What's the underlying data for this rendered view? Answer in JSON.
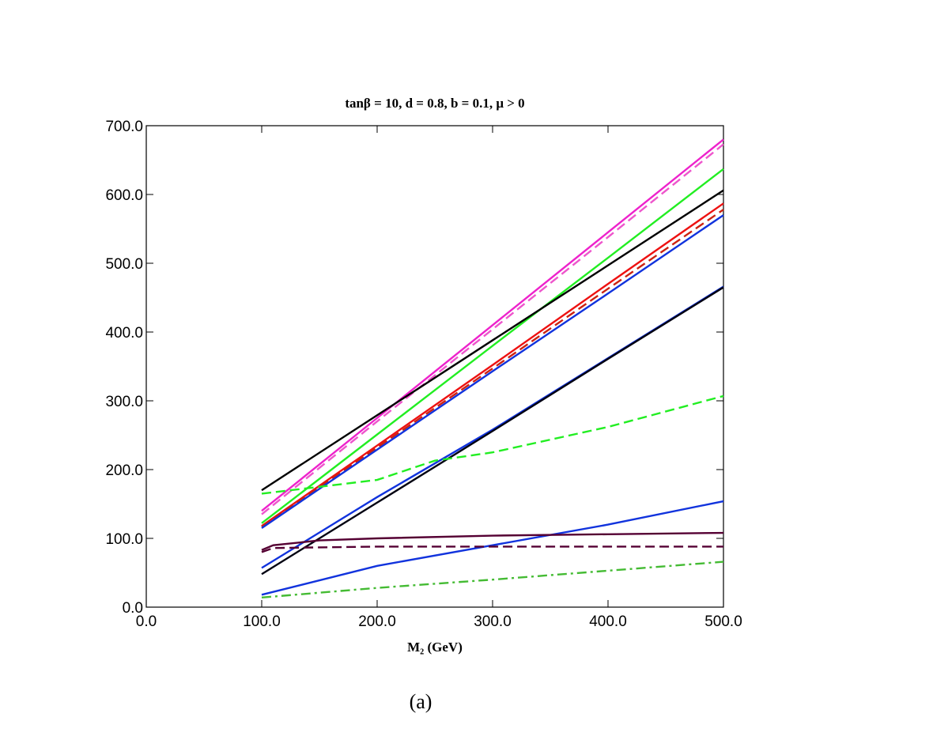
{
  "chart_data": {
    "type": "line",
    "title": "tanβ = 10, d = 0.8, b = 0.1, μ > 0",
    "xlabel": "M₂ (GeV)",
    "caption": "(a)",
    "xlim": [
      0,
      500
    ],
    "ylim": [
      0,
      700
    ],
    "xticks": [
      {
        "value": 0,
        "label": "0.0"
      },
      {
        "value": 100,
        "label": "100.0"
      },
      {
        "value": 200,
        "label": "200.0"
      },
      {
        "value": 300,
        "label": "300.0"
      },
      {
        "value": 400,
        "label": "400.0"
      },
      {
        "value": 500,
        "label": "500.0"
      }
    ],
    "yticks": [
      {
        "value": 0,
        "label": "0.0"
      },
      {
        "value": 100,
        "label": "100.0"
      },
      {
        "value": 200,
        "label": "200.0"
      },
      {
        "value": 300,
        "label": "300.0"
      },
      {
        "value": 400,
        "label": "400.0"
      },
      {
        "value": 500,
        "label": "500.0"
      },
      {
        "value": 600,
        "label": "600.0"
      },
      {
        "value": 700,
        "label": "700.0"
      }
    ],
    "series": [
      {
        "color": "#ee22cc",
        "dash": "solid",
        "x": [
          100,
          200,
          300,
          400,
          500
        ],
        "values": [
          140,
          275,
          410,
          545,
          680
        ]
      },
      {
        "color": "#ee55cc",
        "dash": "dashed",
        "x": [
          100,
          200,
          300,
          400,
          500
        ],
        "values": [
          135,
          270,
          404,
          538,
          673
        ]
      },
      {
        "color": "#22ee22",
        "dash": "solid",
        "x": [
          100,
          200,
          300,
          400,
          500
        ],
        "values": [
          122,
          251,
          380,
          508,
          637
        ]
      },
      {
        "color": "#000000",
        "dash": "solid",
        "x": [
          100,
          200,
          300,
          400,
          500
        ],
        "values": [
          170,
          279,
          388,
          497,
          606
        ]
      },
      {
        "color": "#ee1111",
        "dash": "solid",
        "x": [
          100,
          200,
          300,
          400,
          500
        ],
        "values": [
          118,
          235,
          352,
          470,
          587
        ]
      },
      {
        "color": "#cc2211",
        "dash": "dashed",
        "x": [
          100,
          200,
          300,
          400,
          500
        ],
        "values": [
          117,
          232,
          347,
          463,
          578
        ]
      },
      {
        "color": "#1133dd",
        "dash": "solid",
        "x": [
          100,
          200,
          300,
          400,
          500
        ],
        "values": [
          115,
          229,
          343,
          456,
          570
        ]
      },
      {
        "color": "#1133dd",
        "dash": "solid",
        "x": [
          100,
          200,
          300,
          400,
          500
        ],
        "values": [
          57,
          160,
          258,
          362,
          466
        ]
      },
      {
        "color": "#000011",
        "dash": "solid",
        "x": [
          100,
          200,
          300,
          400,
          500
        ],
        "values": [
          48,
          152,
          256,
          361,
          465
        ]
      },
      {
        "color": "#22ee22",
        "dash": "dashed",
        "x": [
          100,
          200,
          250,
          300,
          400,
          500
        ],
        "values": [
          165,
          185,
          213,
          225,
          262,
          307
        ]
      },
      {
        "color": "#1133dd",
        "dash": "solid",
        "x": [
          100,
          200,
          300,
          400,
          500
        ],
        "values": [
          18,
          60,
          90,
          120,
          154
        ]
      },
      {
        "color": "#550033",
        "dash": "solid",
        "x": [
          100,
          110,
          150,
          200,
          300,
          400,
          500
        ],
        "values": [
          83,
          90,
          97,
          100,
          104,
          106,
          108
        ]
      },
      {
        "color": "#550033",
        "dash": "dashed",
        "x": [
          100,
          110,
          200,
          500
        ],
        "values": [
          80,
          86,
          88,
          88
        ]
      },
      {
        "color": "#44bb33",
        "dash": "dashdot",
        "x": [
          100,
          200,
          300,
          400,
          500
        ],
        "values": [
          14,
          28,
          40,
          53,
          66
        ]
      }
    ]
  }
}
